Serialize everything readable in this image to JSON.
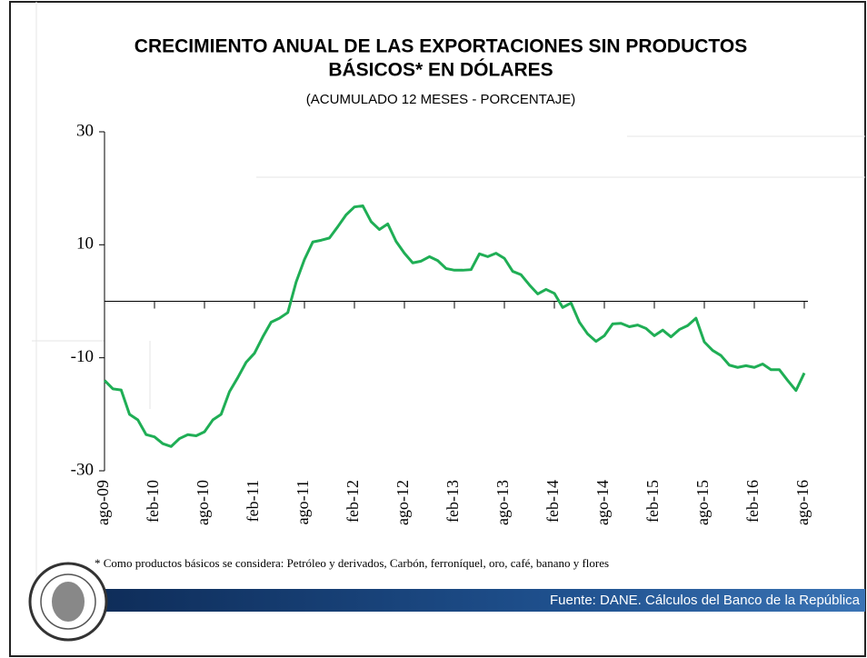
{
  "chart_data": {
    "type": "line",
    "title": [
      "CRECIMIENTO ANUAL DE LAS EXPORTACIONES SIN PRODUCTOS",
      "BÁSICOS* EN DÓLARES"
    ],
    "subtitle": "(ACUMULADO 12 MESES - PORCENTAJE)",
    "footnote": "* Como productos básicos se considera: Petróleo y derivados, Carbón, ferroníquel, oro, café, banano y flores",
    "source": "Fuente: DANE. Cálculos del Banco de la República",
    "categories": [
      "ago-09",
      null,
      null,
      null,
      null,
      null,
      "feb-10",
      null,
      null,
      null,
      null,
      null,
      "ago-10",
      null,
      null,
      null,
      null,
      null,
      "feb-11",
      null,
      null,
      null,
      null,
      null,
      "ago-11",
      null,
      null,
      null,
      null,
      null,
      "feb-12",
      null,
      null,
      null,
      null,
      null,
      "ago-12",
      null,
      null,
      null,
      null,
      null,
      "feb-13",
      null,
      null,
      null,
      null,
      null,
      "ago-13",
      null,
      null,
      null,
      null,
      null,
      "feb-14",
      null,
      null,
      null,
      null,
      null,
      "ago-14",
      null,
      null,
      null,
      null,
      null,
      "feb-15",
      null,
      null,
      null,
      null,
      null,
      "ago-15",
      null,
      null,
      null,
      null,
      null,
      "feb-16",
      null,
      null,
      null,
      null,
      null,
      "ago-16"
    ],
    "series": [
      {
        "color": "#1fae55",
        "values": [
          -14,
          -15.5,
          -15.7,
          -20,
          -21,
          -23.6,
          -24,
          -25.2,
          -25.7,
          -24.3,
          -23.6,
          -23.8,
          -23.1,
          -21,
          -20,
          -16,
          -13.5,
          -10.8,
          -9.2,
          -6.3,
          -3.7,
          -3,
          -2,
          3.4,
          7.4,
          10.5,
          10.8,
          11.2,
          13.2,
          15.3,
          16.7,
          16.9,
          14.1,
          12.7,
          13.7,
          10.6,
          8.5,
          6.8,
          7.1,
          7.9,
          7.2,
          5.8,
          5.5,
          5.5,
          5.6,
          8.4,
          7.9,
          8.5,
          7.6,
          5.3,
          4.7,
          2.9,
          1.3,
          2.1,
          1.4,
          -1.1,
          -0.3,
          -3.7,
          -5.8,
          -7.1,
          -6.1,
          -4,
          -3.9,
          -4.5,
          -4.2,
          -4.8,
          -6.1,
          -5.1,
          -6.3,
          -5,
          -4.3,
          -3,
          -7.2,
          -8.7,
          -9.6,
          -11.3,
          -11.7,
          -11.4,
          -11.7,
          -11.1,
          -12.1,
          -12.1,
          -14,
          -15.8,
          -12.7
        ]
      }
    ],
    "ylim": [
      -30,
      30
    ],
    "yticks": [
      -30,
      -10,
      10,
      30
    ],
    "grid": false
  }
}
